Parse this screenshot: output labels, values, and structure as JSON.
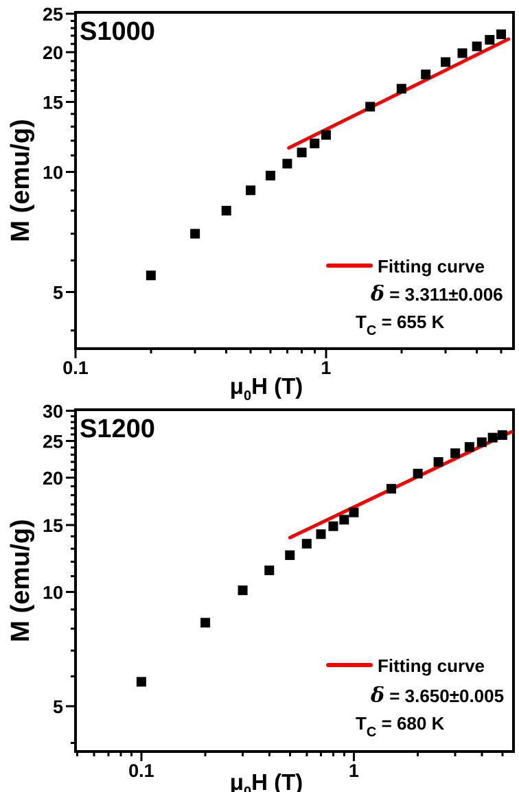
{
  "page": {
    "background": "#ffffff"
  },
  "colors": {
    "data_marker": "#000000",
    "fit_line": "#f70000",
    "frame": "#000000"
  },
  "chart_data": [
    {
      "panel_label": "S1000",
      "type": "scatter",
      "x_axis": {
        "scale": "log",
        "title_parts": [
          "μ",
          "0",
          "H (T)"
        ],
        "range": [
          0.1,
          5.6
        ],
        "major_ticks": [
          {
            "v": 0.1,
            "label": "0.1"
          },
          {
            "v": 1,
            "label": "1"
          }
        ],
        "minor_ticks": [
          0.2,
          0.3,
          0.4,
          0.5,
          0.6,
          0.7,
          0.8,
          0.9,
          2,
          3,
          4,
          5
        ]
      },
      "y_axis": {
        "scale": "log",
        "title": "M (emu/g)",
        "range": [
          3.6,
          25.2
        ],
        "major_ticks": [
          {
            "v": 25,
            "label": "25"
          },
          {
            "v": 20,
            "label": "20"
          },
          {
            "v": 15,
            "label": "15"
          },
          {
            "v": 10,
            "label": "10"
          },
          {
            "v": 5,
            "label": "5"
          }
        ],
        "minor_ticks": [
          4,
          6,
          7,
          8,
          9,
          11,
          12,
          13,
          14,
          16,
          17,
          18,
          19,
          21,
          22,
          23,
          24
        ]
      },
      "series": {
        "name": "M vs H data",
        "marker": "square",
        "points": [
          [
            0.2,
            5.5
          ],
          [
            0.3,
            7.0
          ],
          [
            0.4,
            8.0
          ],
          [
            0.5,
            9.0
          ],
          [
            0.6,
            9.8
          ],
          [
            0.7,
            10.5
          ],
          [
            0.8,
            11.2
          ],
          [
            0.9,
            11.8
          ],
          [
            1.0,
            12.4
          ],
          [
            1.5,
            14.6
          ],
          [
            2.0,
            16.2
          ],
          [
            2.5,
            17.6
          ],
          [
            3.0,
            18.9
          ],
          [
            3.5,
            19.9
          ],
          [
            4.0,
            20.7
          ],
          [
            4.5,
            21.5
          ],
          [
            5.0,
            22.2
          ]
        ]
      },
      "fit_line": {
        "x1": 0.71,
        "y1": 11.5,
        "x2": 5.35,
        "y2": 21.6
      },
      "legend": {
        "label": "Fitting curve"
      },
      "annotations": {
        "delta": {
          "symbol": "δ",
          "text": " = 3.311±0.006",
          "value": 3.311,
          "error": 0.006
        },
        "tc": {
          "base": "T",
          "sub": "C",
          "text": " = 655 K",
          "value": 655,
          "unit": "K"
        }
      }
    },
    {
      "panel_label": "S1200",
      "type": "scatter",
      "x_axis": {
        "scale": "log",
        "title_parts": [
          "μ",
          "0",
          "H (T)"
        ],
        "range": [
          0.049,
          5.64
        ],
        "major_ticks": [
          {
            "v": 0.1,
            "label": "0.1"
          },
          {
            "v": 1,
            "label": "1"
          }
        ],
        "minor_ticks": [
          0.05,
          0.06,
          0.07,
          0.08,
          0.09,
          0.2,
          0.3,
          0.4,
          0.5,
          0.6,
          0.7,
          0.8,
          0.9,
          2,
          3,
          4,
          5
        ]
      },
      "y_axis": {
        "scale": "log",
        "title": "M (emu/g)",
        "range": [
          3.8,
          30.2
        ],
        "major_ticks": [
          {
            "v": 30,
            "label": "30"
          },
          {
            "v": 25,
            "label": "25"
          },
          {
            "v": 20,
            "label": "20"
          },
          {
            "v": 15,
            "label": "15"
          },
          {
            "v": 10,
            "label": "10"
          },
          {
            "v": 5,
            "label": "5"
          }
        ],
        "minor_ticks": [
          4,
          6,
          7,
          8,
          9,
          11,
          12,
          13,
          14,
          16,
          17,
          18,
          19,
          21,
          22,
          23,
          24,
          26,
          27,
          28,
          29
        ]
      },
      "series": {
        "name": "M vs H data",
        "marker": "square",
        "points": [
          [
            0.1,
            5.8
          ],
          [
            0.2,
            8.3
          ],
          [
            0.3,
            10.1
          ],
          [
            0.4,
            11.4
          ],
          [
            0.5,
            12.5
          ],
          [
            0.6,
            13.4
          ],
          [
            0.7,
            14.2
          ],
          [
            0.8,
            14.9
          ],
          [
            0.9,
            15.5
          ],
          [
            1.0,
            16.2
          ],
          [
            1.5,
            18.7
          ],
          [
            2.0,
            20.5
          ],
          [
            2.5,
            22.0
          ],
          [
            3.0,
            23.2
          ],
          [
            3.5,
            24.1
          ],
          [
            4.0,
            24.8
          ],
          [
            4.5,
            25.5
          ],
          [
            5.0,
            25.9
          ]
        ]
      },
      "fit_line": {
        "x1": 0.5,
        "y1": 13.9,
        "x2": 5.5,
        "y2": 26.4
      },
      "legend": {
        "label": "Fitting curve"
      },
      "annotations": {
        "delta": {
          "symbol": "δ",
          "text": " = 3.650±0.005",
          "value": 3.65,
          "error": 0.005
        },
        "tc": {
          "base": "T",
          "sub": "C",
          "text": " = 680 K",
          "value": 680,
          "unit": "K"
        }
      }
    }
  ]
}
